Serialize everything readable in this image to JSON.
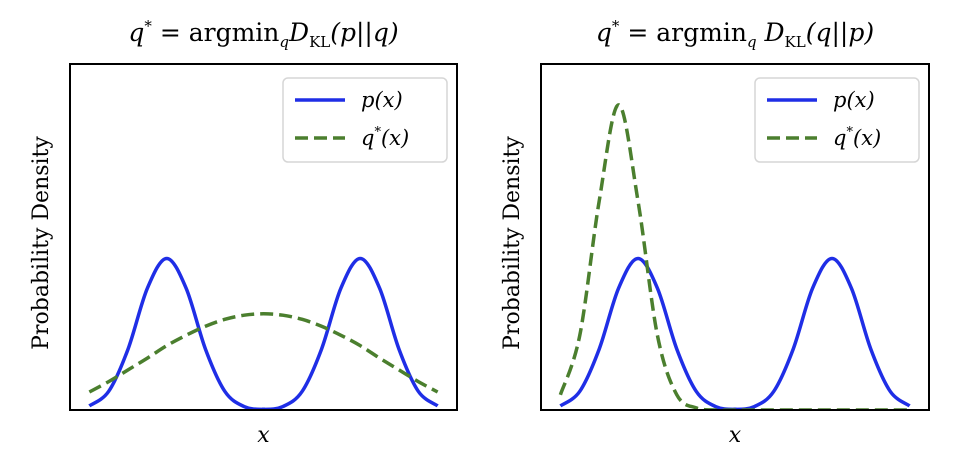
{
  "chart_data": [
    {
      "type": "line",
      "title": "q* = argmin_q D_KL(p||q)",
      "title_parts": {
        "var": "q",
        "sup": "*",
        "eq": " = argmin",
        "sub": "q",
        "D": "D",
        "Dsub": "KL",
        "args": "(p||q)"
      },
      "xlabel": "x",
      "ylabel": "Probability Density",
      "xlim": [
        -5,
        5
      ],
      "ylim": [
        0,
        0.5
      ],
      "grid": false,
      "legend_position": "top-right",
      "x": [
        -4.5,
        -4.0,
        -3.5,
        -3.0,
        -2.5,
        -2.0,
        -1.5,
        -1.0,
        -0.5,
        0.0,
        0.5,
        1.0,
        1.5,
        2.0,
        2.5,
        3.0,
        3.5,
        4.0,
        4.5
      ],
      "series": [
        {
          "name": "p(x)",
          "name_parts": {
            "v": "p",
            "sup": "",
            "args": "(x)"
          },
          "color": "#1f2ee6",
          "style": "solid",
          "values": [
            0.006,
            0.027,
            0.088,
            0.176,
            0.219,
            0.176,
            0.088,
            0.027,
            0.005,
            0.001,
            0.005,
            0.027,
            0.088,
            0.176,
            0.219,
            0.176,
            0.088,
            0.027,
            0.006
          ]
        },
        {
          "name": "q*(x)",
          "name_parts": {
            "v": "q",
            "sup": "*",
            "args": "(x)"
          },
          "color": "#4b7f2e",
          "style": "dashed",
          "values": [
            0.026,
            0.041,
            0.058,
            0.075,
            0.093,
            0.108,
            0.121,
            0.131,
            0.137,
            0.139,
            0.137,
            0.131,
            0.121,
            0.108,
            0.093,
            0.075,
            0.058,
            0.041,
            0.026
          ]
        }
      ]
    },
    {
      "type": "line",
      "title": "q* = argmin_q D_KL(q||p)",
      "title_parts": {
        "var": "q",
        "sup": "*",
        "eq": " = argmin",
        "sub": "q",
        "D": " D",
        "Dsub": "KL",
        "args": "(q||p)"
      },
      "xlabel": "x",
      "ylabel": "Probability Density",
      "xlim": [
        -5,
        5
      ],
      "ylim": [
        0,
        0.5
      ],
      "grid": false,
      "legend_position": "top-right",
      "x": [
        -4.5,
        -4.0,
        -3.5,
        -3.0,
        -2.5,
        -2.0,
        -1.5,
        -1.0,
        -0.5,
        0.0,
        0.5,
        1.0,
        1.5,
        2.0,
        2.5,
        3.0,
        3.5,
        4.0,
        4.5
      ],
      "series": [
        {
          "name": "p(x)",
          "name_parts": {
            "v": "p",
            "sup": "",
            "args": "(x)"
          },
          "color": "#1f2ee6",
          "style": "solid",
          "values": [
            0.006,
            0.027,
            0.088,
            0.176,
            0.219,
            0.176,
            0.088,
            0.027,
            0.005,
            0.001,
            0.005,
            0.027,
            0.088,
            0.176,
            0.219,
            0.176,
            0.088,
            0.027,
            0.006
          ]
        },
        {
          "name": "q*(x)",
          "name_parts": {
            "v": "q",
            "sup": "*",
            "args": "(x)"
          },
          "color": "#4b7f2e",
          "style": "dashed",
          "values": [
            0.022,
            0.108,
            0.302,
            0.441,
            0.302,
            0.108,
            0.022,
            0.003,
            0.0,
            0.0,
            0.0,
            0.0,
            0.0,
            0.0,
            0.0,
            0.0,
            0.0,
            0.0,
            0.0
          ]
        }
      ]
    }
  ]
}
